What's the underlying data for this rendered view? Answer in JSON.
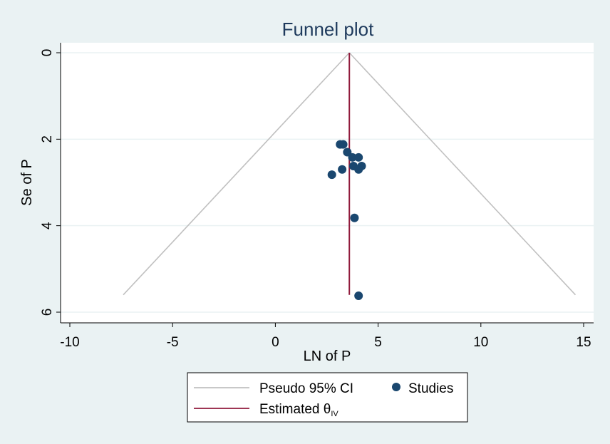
{
  "chart_data": {
    "type": "scatter",
    "title": "Funnel plot",
    "xlabel": "LN of P",
    "ylabel": "Se of P",
    "xlim": [
      -10.5,
      15.5
    ],
    "ylim": [
      0,
      6.2
    ],
    "y_reversed": true,
    "xticks": [
      -10,
      -5,
      0,
      5,
      10,
      15
    ],
    "yticks": [
      0,
      2,
      4,
      6
    ],
    "xtick_labels": [
      "-10",
      "-5",
      "0",
      "5",
      "10",
      "15"
    ],
    "ytick_labels": [
      "0",
      "2",
      "4",
      "6"
    ],
    "grid": "horizontal",
    "estimated_theta": 3.6,
    "pseudo_ci": {
      "apex": [
        3.6,
        0
      ],
      "base_left": [
        -7.4,
        5.6
      ],
      "base_right": [
        14.6,
        5.6
      ]
    },
    "studies": [
      {
        "x": 3.15,
        "y": 2.12
      },
      {
        "x": 3.3,
        "y": 2.12
      },
      {
        "x": 3.5,
        "y": 2.3
      },
      {
        "x": 3.75,
        "y": 2.42
      },
      {
        "x": 4.05,
        "y": 2.42
      },
      {
        "x": 3.8,
        "y": 2.62
      },
      {
        "x": 4.2,
        "y": 2.62
      },
      {
        "x": 3.25,
        "y": 2.7
      },
      {
        "x": 4.05,
        "y": 2.7
      },
      {
        "x": 2.75,
        "y": 2.82
      },
      {
        "x": 3.85,
        "y": 3.82
      },
      {
        "x": 4.05,
        "y": 5.62
      }
    ],
    "colors": {
      "background": "#eaf2f3",
      "plot_area": "#ffffff",
      "gridline": "#eaf2f3",
      "ci_line": "#c0c0c0",
      "theta_line": "#90193b",
      "studies": "#1a476f",
      "title": "#1e3a5c"
    },
    "legend": {
      "placement": "bottom",
      "items": [
        {
          "label": "Pseudo 95% CI",
          "kind": "line",
          "color": "#c0c0c0"
        },
        {
          "label": "Studies",
          "kind": "marker",
          "color": "#1a476f"
        },
        {
          "label": "Estimated θ",
          "subscript": "IV",
          "kind": "line",
          "color": "#90193b"
        }
      ]
    }
  }
}
